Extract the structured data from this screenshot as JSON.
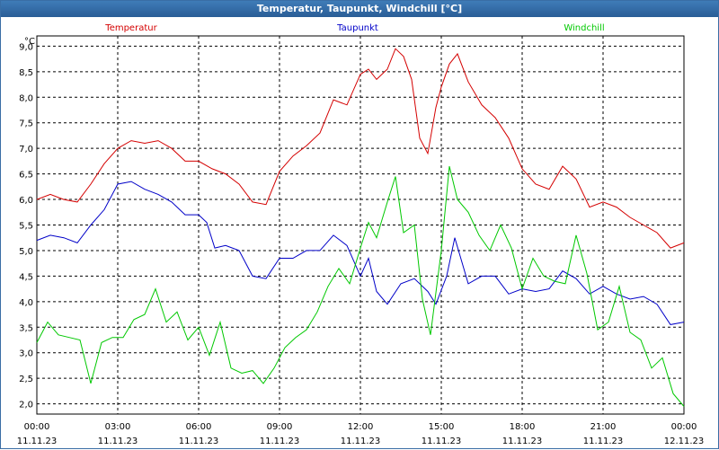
{
  "window": {
    "title": "Temperatur, Taupunkt, Windchill [°C]"
  },
  "chart_data": {
    "type": "line",
    "title": "Temperatur, Taupunkt, Windchill [°C]",
    "ylabel": "°C",
    "xlabel": "",
    "ylim": [
      1.8,
      9.2
    ],
    "xlim": [
      0,
      24
    ],
    "grid": true,
    "y_ticks": [
      "2,0",
      "2,5",
      "3,0",
      "3,5",
      "4,0",
      "4,5",
      "5,0",
      "5,5",
      "6,0",
      "6,5",
      "7,0",
      "7,5",
      "8,0",
      "8,5",
      "9,0"
    ],
    "x_ticks": [
      {
        "time": "00:00",
        "date": "11.11.23"
      },
      {
        "time": "03:00",
        "date": "11.11.23"
      },
      {
        "time": "06:00",
        "date": "11.11.23"
      },
      {
        "time": "09:00",
        "date": "11.11.23"
      },
      {
        "time": "12:00",
        "date": "11.11.23"
      },
      {
        "time": "15:00",
        "date": "11.11.23"
      },
      {
        "time": "18:00",
        "date": "11.11.23"
      },
      {
        "time": "21:00",
        "date": "11.11.23"
      },
      {
        "time": "00:00",
        "date": "12.11.23"
      }
    ],
    "series": [
      {
        "name": "Temperatur",
        "color": "#d40000",
        "x": [
          0,
          0.5,
          1,
          1.5,
          2,
          2.5,
          3,
          3.5,
          4,
          4.5,
          5,
          5.5,
          6,
          6.5,
          7,
          7.5,
          8,
          8.5,
          9,
          9.5,
          10,
          10.5,
          11,
          11.5,
          12,
          12.3,
          12.6,
          13,
          13.3,
          13.6,
          13.9,
          14.2,
          14.5,
          14.8,
          15,
          15.3,
          15.6,
          16,
          16.5,
          17,
          17.5,
          18,
          18.5,
          19,
          19.5,
          20,
          20.5,
          21,
          21.5,
          22,
          22.5,
          23,
          23.5,
          24
        ],
        "values": [
          6.0,
          6.1,
          6.0,
          5.95,
          6.3,
          6.7,
          7.0,
          7.15,
          7.1,
          7.15,
          7.0,
          6.75,
          6.75,
          6.6,
          6.5,
          6.3,
          5.95,
          5.9,
          6.55,
          6.85,
          7.05,
          7.3,
          7.95,
          7.85,
          8.45,
          8.55,
          8.35,
          8.55,
          8.95,
          8.8,
          8.35,
          7.2,
          6.9,
          7.8,
          8.2,
          8.65,
          8.85,
          8.3,
          7.85,
          7.6,
          7.2,
          6.6,
          6.3,
          6.2,
          6.65,
          6.4,
          5.85,
          5.95,
          5.85,
          5.65,
          5.5,
          5.35,
          5.05,
          5.15
        ]
      },
      {
        "name": "Taupunkt",
        "color": "#0000c8",
        "x": [
          0,
          0.5,
          1,
          1.5,
          2,
          2.5,
          3,
          3.5,
          4,
          4.5,
          5,
          5.5,
          6,
          6.3,
          6.6,
          7,
          7.5,
          8,
          8.5,
          9,
          9.5,
          10,
          10.5,
          11,
          11.5,
          12,
          12.3,
          12.6,
          13,
          13.5,
          14,
          14.5,
          14.8,
          15.2,
          15.5,
          16,
          16.5,
          17,
          17.5,
          18,
          18.5,
          19,
          19.5,
          20,
          20.5,
          21,
          21.5,
          22,
          22.5,
          23,
          23.5,
          24
        ],
        "values": [
          5.2,
          5.3,
          5.25,
          5.15,
          5.5,
          5.8,
          6.3,
          6.35,
          6.2,
          6.1,
          5.95,
          5.7,
          5.7,
          5.55,
          5.05,
          5.1,
          5.0,
          4.5,
          4.45,
          4.85,
          4.85,
          5.0,
          5.0,
          5.3,
          5.1,
          4.5,
          4.85,
          4.2,
          3.95,
          4.35,
          4.45,
          4.2,
          3.95,
          4.5,
          5.25,
          4.35,
          4.5,
          4.5,
          4.15,
          4.25,
          4.2,
          4.25,
          4.6,
          4.45,
          4.15,
          4.3,
          4.15,
          4.05,
          4.1,
          3.95,
          3.55,
          3.6
        ]
      },
      {
        "name": "Windchill",
        "color": "#00c800",
        "x": [
          0,
          0.4,
          0.8,
          1.2,
          1.6,
          2,
          2.4,
          2.8,
          3.2,
          3.6,
          4,
          4.4,
          4.8,
          5.2,
          5.6,
          6,
          6.4,
          6.8,
          7.2,
          7.6,
          8,
          8.4,
          8.8,
          9.2,
          9.6,
          10,
          10.4,
          10.8,
          11.2,
          11.6,
          12,
          12.3,
          12.6,
          13,
          13.3,
          13.6,
          14,
          14.3,
          14.6,
          15,
          15.3,
          15.6,
          16,
          16.4,
          16.8,
          17.2,
          17.6,
          18,
          18.4,
          18.8,
          19.2,
          19.6,
          20,
          20.4,
          20.8,
          21.2,
          21.6,
          22,
          22.4,
          22.8,
          23.2,
          23.6,
          24
        ],
        "values": [
          3.2,
          3.6,
          3.35,
          3.3,
          3.25,
          2.4,
          3.2,
          3.3,
          3.3,
          3.65,
          3.75,
          4.25,
          3.6,
          3.8,
          3.25,
          3.5,
          2.95,
          3.6,
          2.7,
          2.6,
          2.65,
          2.4,
          2.7,
          3.1,
          3.3,
          3.45,
          3.8,
          4.3,
          4.65,
          4.35,
          5.05,
          5.55,
          5.25,
          5.95,
          6.45,
          5.35,
          5.5,
          4.05,
          3.35,
          5.0,
          6.65,
          6.0,
          5.75,
          5.3,
          5.0,
          5.5,
          5.05,
          4.25,
          4.85,
          4.5,
          4.4,
          4.35,
          5.3,
          4.55,
          3.45,
          3.6,
          4.3,
          3.4,
          3.25,
          2.7,
          2.9,
          2.2,
          1.95
        ]
      }
    ]
  }
}
